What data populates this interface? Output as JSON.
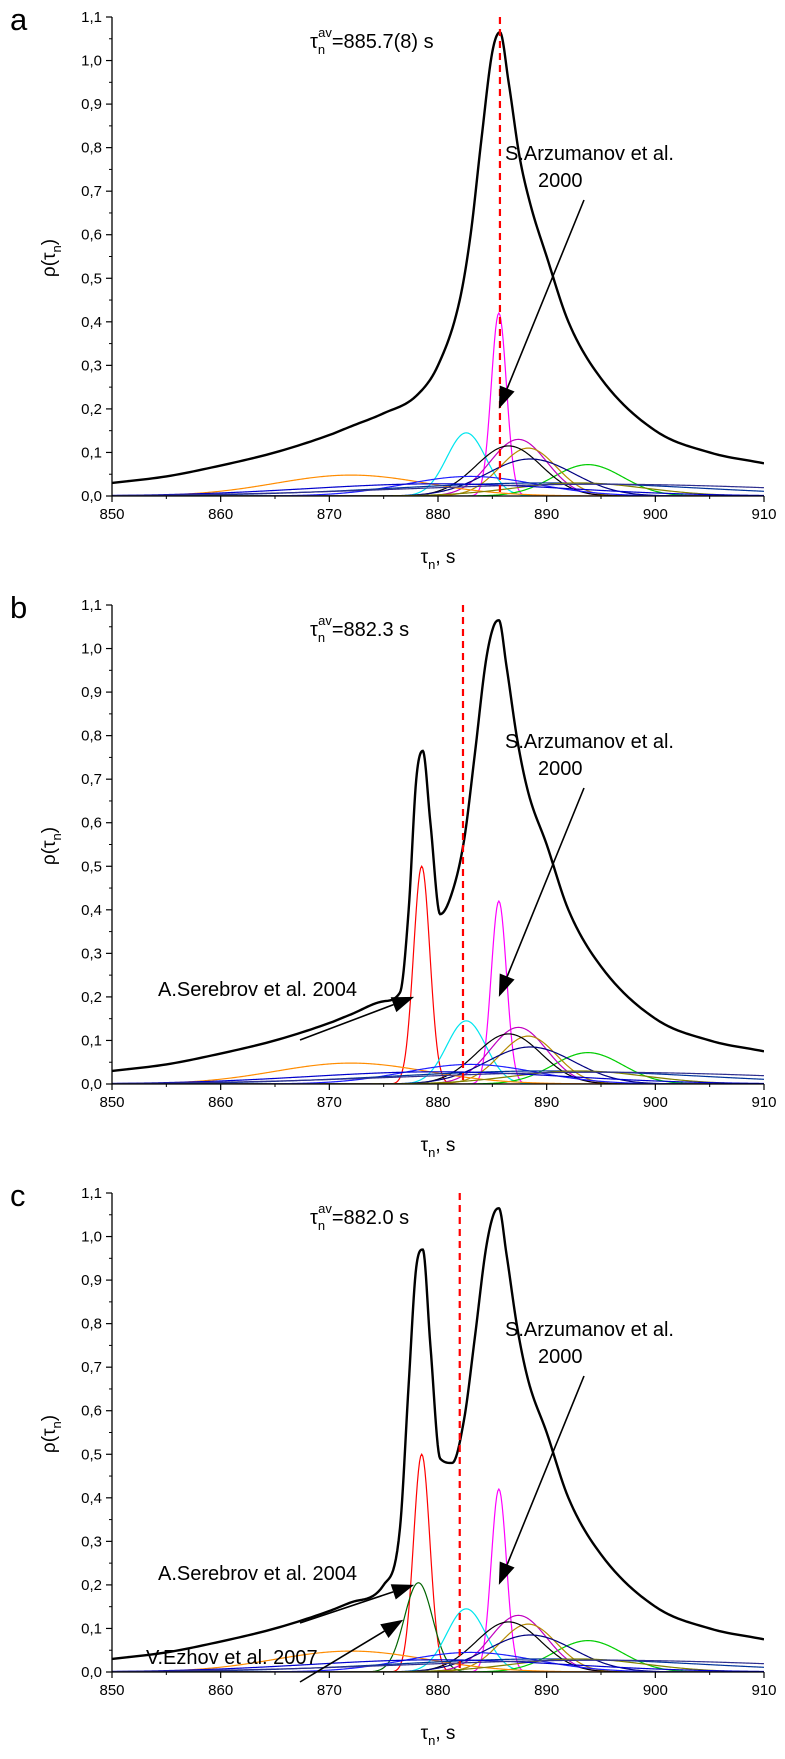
{
  "chart_data": [
    {
      "type": "line",
      "panel_label": "a",
      "xlabel": "τn, s",
      "ylabel": "ρ(τn)",
      "xlim": [
        850,
        910
      ],
      "ylim": [
        0.0,
        1.1
      ],
      "x_ticks": [
        "850",
        "860",
        "870",
        "880",
        "890",
        "900",
        "910"
      ],
      "y_ticks": [
        "0,0",
        "0,1",
        "0,2",
        "0,3",
        "0,4",
        "0,5",
        "0,6",
        "0,7",
        "0,8",
        "0,9",
        "1,0",
        "1,1"
      ],
      "average": {
        "label": "τnav=885.7(8) s",
        "value": 885.7
      },
      "annotations": [
        {
          "text_lines": [
            "S.Arzumanov et al.",
            "2000"
          ],
          "points_to": [
            885.6,
            0.2
          ]
        }
      ],
      "total_curve": {
        "name": "sum",
        "x": [
          850,
          855,
          860,
          865,
          870,
          872,
          875,
          878,
          880,
          882,
          883,
          884,
          885,
          885.7,
          886.5,
          887.5,
          888.5,
          890,
          892,
          895,
          900,
          905,
          910
        ],
        "y": [
          0.03,
          0.045,
          0.07,
          0.1,
          0.14,
          0.16,
          0.19,
          0.23,
          0.3,
          0.45,
          0.6,
          0.82,
          1.02,
          1.065,
          0.95,
          0.78,
          0.67,
          0.55,
          0.4,
          0.27,
          0.15,
          0.1,
          0.075
        ]
      },
      "components": [
        {
          "color": "#ff00ff",
          "center": 885.6,
          "height": 0.42,
          "width": 0.7
        },
        {
          "color": "#00e5ee",
          "center": 882.6,
          "height": 0.145,
          "width": 1.8
        },
        {
          "color": "#00cc00",
          "center": 893.8,
          "height": 0.072,
          "width": 3.2
        },
        {
          "color": "#c000c0",
          "center": 887.4,
          "height": 0.13,
          "width": 2.6
        },
        {
          "color": "#b58a00",
          "center": 888.3,
          "height": 0.11,
          "width": 2.6
        },
        {
          "color": "#000000",
          "center": 886.5,
          "height": 0.115,
          "width": 3.0
        },
        {
          "color": "#000080",
          "center": 888.5,
          "height": 0.085,
          "width": 4.0
        },
        {
          "color": "#ff8c00",
          "center": 872.0,
          "height": 0.048,
          "width": 7.0
        },
        {
          "color": "#1e1eff",
          "center": 883.0,
          "height": 0.045,
          "width": 6.0
        },
        {
          "color": "#003399",
          "center": 890.0,
          "height": 0.03,
          "width": 14.0
        },
        {
          "color": "#808000",
          "center": 893.0,
          "height": 0.03,
          "width": 6.0
        },
        {
          "color": "#0000cd",
          "center": 880.0,
          "height": 0.028,
          "width": 12.0
        },
        {
          "color": "#2f2f8f",
          "center": 895.0,
          "height": 0.027,
          "width": 18.0
        }
      ]
    },
    {
      "type": "line",
      "panel_label": "b",
      "xlabel": "τn, s",
      "ylabel": "ρ(τn)",
      "xlim": [
        850,
        910
      ],
      "ylim": [
        0.0,
        1.1
      ],
      "x_ticks": [
        "850",
        "860",
        "870",
        "880",
        "890",
        "900",
        "910"
      ],
      "y_ticks": [
        "0,0",
        "0,1",
        "0,2",
        "0,3",
        "0,4",
        "0,5",
        "0,6",
        "0,7",
        "0,8",
        "0,9",
        "1,0",
        "1,1"
      ],
      "average": {
        "label": "τnav=882.3 s",
        "value": 882.3
      },
      "annotations": [
        {
          "text_lines": [
            "S.Arzumanov et al.",
            "2000"
          ],
          "points_to": [
            885.6,
            0.2
          ]
        },
        {
          "text_lines": [
            "A.Serebrov et al. 2004"
          ],
          "points_to": [
            877.8,
            0.2
          ]
        }
      ],
      "total_curve": {
        "name": "sum",
        "x": [
          850,
          855,
          860,
          865,
          870,
          872,
          875,
          876.5,
          877.3,
          878.0,
          878.6,
          879.3,
          880.2,
          881.3,
          882.4,
          883.4,
          884.4,
          885.1,
          885.6,
          886.3,
          887.3,
          888.3,
          890,
          892,
          895,
          900,
          905,
          910
        ],
        "y": [
          0.03,
          0.045,
          0.07,
          0.1,
          0.14,
          0.16,
          0.19,
          0.21,
          0.4,
          0.7,
          0.765,
          0.6,
          0.39,
          0.44,
          0.56,
          0.76,
          0.97,
          1.05,
          1.065,
          0.96,
          0.79,
          0.67,
          0.55,
          0.4,
          0.27,
          0.15,
          0.1,
          0.075
        ]
      },
      "components": [
        {
          "color": "#ff0000",
          "center": 878.5,
          "height": 0.5,
          "width": 0.75
        },
        {
          "color": "#ff00ff",
          "center": 885.6,
          "height": 0.42,
          "width": 0.7
        },
        {
          "color": "#00e5ee",
          "center": 882.6,
          "height": 0.145,
          "width": 1.8
        },
        {
          "color": "#00cc00",
          "center": 893.8,
          "height": 0.072,
          "width": 3.2
        },
        {
          "color": "#c000c0",
          "center": 887.4,
          "height": 0.13,
          "width": 2.6
        },
        {
          "color": "#b58a00",
          "center": 888.3,
          "height": 0.11,
          "width": 2.6
        },
        {
          "color": "#000000",
          "center": 886.5,
          "height": 0.115,
          "width": 3.0
        },
        {
          "color": "#000080",
          "center": 888.5,
          "height": 0.085,
          "width": 4.0
        },
        {
          "color": "#ff8c00",
          "center": 872.0,
          "height": 0.048,
          "width": 7.0
        },
        {
          "color": "#1e1eff",
          "center": 883.0,
          "height": 0.045,
          "width": 6.0
        },
        {
          "color": "#003399",
          "center": 890.0,
          "height": 0.03,
          "width": 14.0
        },
        {
          "color": "#808000",
          "center": 893.0,
          "height": 0.03,
          "width": 6.0
        },
        {
          "color": "#0000cd",
          "center": 880.0,
          "height": 0.028,
          "width": 12.0
        },
        {
          "color": "#2f2f8f",
          "center": 895.0,
          "height": 0.027,
          "width": 18.0
        }
      ]
    },
    {
      "type": "line",
      "panel_label": "c",
      "xlabel": "τn, s",
      "ylabel": "ρ(τn)",
      "xlim": [
        850,
        910
      ],
      "ylim": [
        0.0,
        1.1
      ],
      "x_ticks": [
        "850",
        "860",
        "870",
        "880",
        "890",
        "900",
        "910"
      ],
      "y_ticks": [
        "0,0",
        "0,1",
        "0,2",
        "0,3",
        "0,4",
        "0,5",
        "0,6",
        "0,7",
        "0,8",
        "0,9",
        "1,0",
        "1,1"
      ],
      "average": {
        "label": "τnav=882.0 s",
        "value": 882.0
      },
      "annotations": [
        {
          "text_lines": [
            "S.Arzumanov et al.",
            "2000"
          ],
          "points_to": [
            885.6,
            0.2
          ]
        },
        {
          "text_lines": [
            "A.Serebrov et al. 2004"
          ],
          "points_to": [
            877.8,
            0.2
          ]
        },
        {
          "text_lines": [
            "V.Ezhov et al. 2007"
          ],
          "points_to": [
            876.8,
            0.12
          ]
        }
      ],
      "total_curve": {
        "name": "sum",
        "x": [
          850,
          855,
          860,
          865,
          870,
          872,
          875,
          876.5,
          877.3,
          878.0,
          878.6,
          879.3,
          880.2,
          881.3,
          882.4,
          883.4,
          884.4,
          885.1,
          885.6,
          886.3,
          887.3,
          888.3,
          890,
          892,
          895,
          900,
          905,
          910
        ],
        "y": [
          0.03,
          0.045,
          0.07,
          0.1,
          0.14,
          0.16,
          0.2,
          0.33,
          0.66,
          0.93,
          0.97,
          0.75,
          0.49,
          0.48,
          0.58,
          0.77,
          0.97,
          1.05,
          1.065,
          0.96,
          0.79,
          0.67,
          0.55,
          0.4,
          0.27,
          0.15,
          0.1,
          0.075
        ]
      },
      "components": [
        {
          "color": "#ff0000",
          "center": 878.5,
          "height": 0.5,
          "width": 0.75
        },
        {
          "color": "#006400",
          "center": 878.2,
          "height": 0.205,
          "width": 1.3
        },
        {
          "color": "#ff00ff",
          "center": 885.6,
          "height": 0.42,
          "width": 0.7
        },
        {
          "color": "#00e5ee",
          "center": 882.6,
          "height": 0.145,
          "width": 1.8
        },
        {
          "color": "#00cc00",
          "center": 893.8,
          "height": 0.072,
          "width": 3.2
        },
        {
          "color": "#c000c0",
          "center": 887.4,
          "height": 0.13,
          "width": 2.6
        },
        {
          "color": "#b58a00",
          "center": 888.3,
          "height": 0.11,
          "width": 2.6
        },
        {
          "color": "#000000",
          "center": 886.5,
          "height": 0.115,
          "width": 3.0
        },
        {
          "color": "#000080",
          "center": 888.5,
          "height": 0.085,
          "width": 4.0
        },
        {
          "color": "#ff8c00",
          "center": 872.0,
          "height": 0.048,
          "width": 7.0
        },
        {
          "color": "#1e1eff",
          "center": 883.0,
          "height": 0.045,
          "width": 6.0
        },
        {
          "color": "#003399",
          "center": 890.0,
          "height": 0.03,
          "width": 14.0
        },
        {
          "color": "#808000",
          "center": 893.0,
          "height": 0.03,
          "width": 6.0
        },
        {
          "color": "#0000cd",
          "center": 880.0,
          "height": 0.028,
          "width": 12.0
        },
        {
          "color": "#2f2f8f",
          "center": 895.0,
          "height": 0.027,
          "width": 18.0
        }
      ]
    }
  ],
  "colors": {
    "axis": "#000000",
    "average_line": "#ff0000",
    "total_curve": "#000000",
    "background": "#ffffff"
  }
}
